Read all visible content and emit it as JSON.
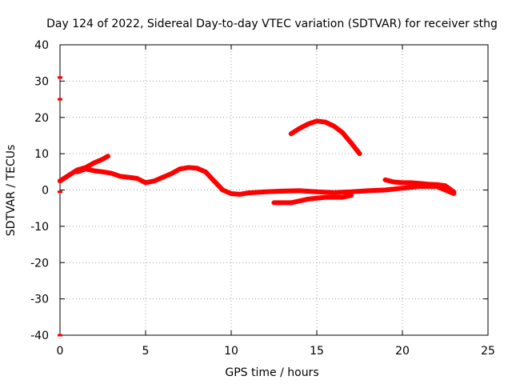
{
  "chart_data": {
    "type": "line",
    "title": "Day 124 of 2022, Sidereal Day-to-day VTEC variation (SDTVAR) for receiver sthg",
    "xlabel": "GPS time / hours",
    "ylabel": "SDTVAR / TECUs",
    "xlim": [
      0,
      25
    ],
    "ylim": [
      -40,
      40
    ],
    "xticks": [
      0,
      5,
      10,
      15,
      20,
      25
    ],
    "yticks": [
      -40,
      -30,
      -20,
      -10,
      0,
      10,
      20,
      30,
      40
    ],
    "grid": true,
    "color": "#ff0000",
    "series": [
      {
        "name": "trace-main-early",
        "points": [
          [
            0,
            2.5
          ],
          [
            0.5,
            4
          ],
          [
            1,
            5.5
          ],
          [
            1.5,
            6.2
          ],
          [
            2,
            7.5
          ],
          [
            2.5,
            8.5
          ],
          [
            2.8,
            9.3
          ]
        ]
      },
      {
        "name": "trace-main-mid",
        "points": [
          [
            1,
            5
          ],
          [
            1.5,
            5.8
          ],
          [
            2,
            5.3
          ],
          [
            2.5,
            5
          ],
          [
            3,
            4.6
          ],
          [
            3.5,
            3.8
          ],
          [
            4,
            3.5
          ],
          [
            4.5,
            3.2
          ],
          [
            5,
            2
          ],
          [
            5.5,
            2.5
          ],
          [
            6,
            3.5
          ],
          [
            6.5,
            4.5
          ],
          [
            7,
            5.8
          ],
          [
            7.5,
            6.2
          ],
          [
            8,
            6
          ],
          [
            8.5,
            5
          ],
          [
            9,
            2.5
          ],
          [
            9.5,
            0
          ],
          [
            10,
            -1
          ],
          [
            10.5,
            -1.2
          ],
          [
            11,
            -0.8
          ],
          [
            12,
            -0.5
          ],
          [
            13,
            -0.3
          ],
          [
            14,
            -0.2
          ],
          [
            15,
            -0.5
          ],
          [
            16,
            -0.7
          ],
          [
            17,
            -0.5
          ],
          [
            18,
            -0.2
          ],
          [
            19,
            0
          ],
          [
            20,
            0.5
          ],
          [
            21,
            1
          ],
          [
            22,
            1
          ],
          [
            22.5,
            0
          ],
          [
            23,
            -1
          ]
        ]
      },
      {
        "name": "trace-lower-segment",
        "points": [
          [
            12.5,
            -3.5
          ],
          [
            13.5,
            -3.5
          ],
          [
            14.5,
            -2.5
          ],
          [
            15.5,
            -2
          ],
          [
            16.5,
            -2
          ],
          [
            17,
            -1.5
          ]
        ]
      },
      {
        "name": "trace-right-upper",
        "points": [
          [
            19,
            2.8
          ],
          [
            19.5,
            2.2
          ],
          [
            20,
            2
          ],
          [
            20.5,
            2
          ],
          [
            21,
            1.8
          ],
          [
            21.5,
            1.6
          ],
          [
            22,
            1.5
          ],
          [
            22.5,
            1.2
          ],
          [
            23,
            -0.5
          ]
        ]
      },
      {
        "name": "trace-arc",
        "points": [
          [
            13.5,
            15.5
          ],
          [
            14,
            17
          ],
          [
            14.5,
            18.2
          ],
          [
            15,
            19
          ],
          [
            15.5,
            18.7
          ],
          [
            16,
            17.6
          ],
          [
            16.5,
            15.8
          ],
          [
            17,
            13
          ],
          [
            17.5,
            10
          ]
        ]
      },
      {
        "name": "edge-point-31",
        "points": [
          [
            0,
            31
          ]
        ]
      },
      {
        "name": "edge-point-25",
        "points": [
          [
            0,
            25
          ]
        ]
      },
      {
        "name": "edge-point-0",
        "points": [
          [
            0,
            -0.5
          ]
        ]
      },
      {
        "name": "edge-point-minus-40",
        "points": [
          [
            0,
            -40
          ]
        ]
      }
    ]
  }
}
